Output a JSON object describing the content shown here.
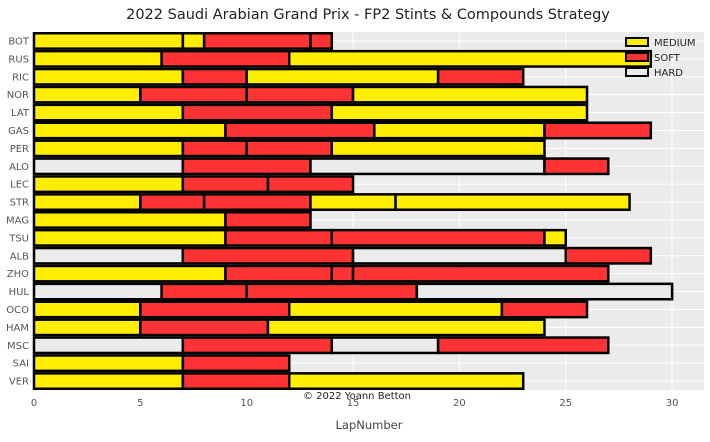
{
  "chart_data": {
    "type": "bar",
    "orientation": "horizontal-stacked",
    "title": "2022 Saudi Arabian Grand Prix - FP2 Stints & Compounds Strategy",
    "xlabel": "LapNumber",
    "ylabel": "",
    "xlim": [
      0,
      31.5
    ],
    "xticks": [
      0,
      5,
      10,
      15,
      20,
      25,
      30
    ],
    "grid": true,
    "legend_position": "top-right",
    "credit": "© 2022 Yoann Betton",
    "compounds": [
      {
        "name": "MEDIUM",
        "color": "#ffee00"
      },
      {
        "name": "SOFT",
        "color": "#ff3333"
      },
      {
        "name": "HARD",
        "color": "#ebebeb"
      }
    ],
    "drivers": [
      {
        "driver": "VER",
        "stints": [
          {
            "start": 0,
            "end": 7,
            "compound": "MEDIUM"
          },
          {
            "start": 7,
            "end": 12,
            "compound": "SOFT"
          },
          {
            "start": 12,
            "end": 23,
            "compound": "MEDIUM"
          }
        ]
      },
      {
        "driver": "SAI",
        "stints": [
          {
            "start": 0,
            "end": 7,
            "compound": "MEDIUM"
          },
          {
            "start": 7,
            "end": 12,
            "compound": "SOFT"
          }
        ]
      },
      {
        "driver": "MSC",
        "stints": [
          {
            "start": 0,
            "end": 7,
            "compound": "HARD"
          },
          {
            "start": 7,
            "end": 14,
            "compound": "SOFT"
          },
          {
            "start": 14,
            "end": 19,
            "compound": "HARD"
          },
          {
            "start": 19,
            "end": 27,
            "compound": "SOFT"
          }
        ]
      },
      {
        "driver": "HAM",
        "stints": [
          {
            "start": 0,
            "end": 5,
            "compound": "MEDIUM"
          },
          {
            "start": 5,
            "end": 11,
            "compound": "SOFT"
          },
          {
            "start": 11,
            "end": 24,
            "compound": "MEDIUM"
          }
        ]
      },
      {
        "driver": "OCO",
        "stints": [
          {
            "start": 0,
            "end": 5,
            "compound": "MEDIUM"
          },
          {
            "start": 5,
            "end": 12,
            "compound": "SOFT"
          },
          {
            "start": 12,
            "end": 22,
            "compound": "MEDIUM"
          },
          {
            "start": 22,
            "end": 26,
            "compound": "SOFT"
          }
        ]
      },
      {
        "driver": "HUL",
        "stints": [
          {
            "start": 0,
            "end": 6,
            "compound": "HARD"
          },
          {
            "start": 6,
            "end": 10,
            "compound": "SOFT"
          },
          {
            "start": 10,
            "end": 18,
            "compound": "SOFT"
          },
          {
            "start": 18,
            "end": 30,
            "compound": "HARD"
          }
        ]
      },
      {
        "driver": "ZHO",
        "stints": [
          {
            "start": 0,
            "end": 9,
            "compound": "MEDIUM"
          },
          {
            "start": 9,
            "end": 14,
            "compound": "SOFT"
          },
          {
            "start": 14,
            "end": 15,
            "compound": "SOFT"
          },
          {
            "start": 15,
            "end": 27,
            "compound": "SOFT"
          }
        ]
      },
      {
        "driver": "ALB",
        "stints": [
          {
            "start": 0,
            "end": 7,
            "compound": "HARD"
          },
          {
            "start": 7,
            "end": 15,
            "compound": "SOFT"
          },
          {
            "start": 15,
            "end": 25,
            "compound": "HARD"
          },
          {
            "start": 25,
            "end": 29,
            "compound": "SOFT"
          }
        ]
      },
      {
        "driver": "TSU",
        "stints": [
          {
            "start": 0,
            "end": 9,
            "compound": "MEDIUM"
          },
          {
            "start": 9,
            "end": 14,
            "compound": "SOFT"
          },
          {
            "start": 14,
            "end": 24,
            "compound": "SOFT"
          },
          {
            "start": 24,
            "end": 25,
            "compound": "MEDIUM"
          }
        ]
      },
      {
        "driver": "MAG",
        "stints": [
          {
            "start": 0,
            "end": 9,
            "compound": "MEDIUM"
          },
          {
            "start": 9,
            "end": 13,
            "compound": "SOFT"
          }
        ]
      },
      {
        "driver": "STR",
        "stints": [
          {
            "start": 0,
            "end": 5,
            "compound": "MEDIUM"
          },
          {
            "start": 5,
            "end": 8,
            "compound": "SOFT"
          },
          {
            "start": 8,
            "end": 13,
            "compound": "SOFT"
          },
          {
            "start": 13,
            "end": 17,
            "compound": "MEDIUM"
          },
          {
            "start": 17,
            "end": 28,
            "compound": "MEDIUM"
          }
        ]
      },
      {
        "driver": "LEC",
        "stints": [
          {
            "start": 0,
            "end": 7,
            "compound": "MEDIUM"
          },
          {
            "start": 7,
            "end": 11,
            "compound": "SOFT"
          },
          {
            "start": 11,
            "end": 15,
            "compound": "SOFT"
          }
        ]
      },
      {
        "driver": "ALO",
        "stints": [
          {
            "start": 0,
            "end": 7,
            "compound": "HARD"
          },
          {
            "start": 7,
            "end": 13,
            "compound": "SOFT"
          },
          {
            "start": 13,
            "end": 24,
            "compound": "HARD"
          },
          {
            "start": 24,
            "end": 27,
            "compound": "SOFT"
          }
        ]
      },
      {
        "driver": "PER",
        "stints": [
          {
            "start": 0,
            "end": 7,
            "compound": "MEDIUM"
          },
          {
            "start": 7,
            "end": 10,
            "compound": "SOFT"
          },
          {
            "start": 10,
            "end": 14,
            "compound": "SOFT"
          },
          {
            "start": 14,
            "end": 24,
            "compound": "MEDIUM"
          }
        ]
      },
      {
        "driver": "GAS",
        "stints": [
          {
            "start": 0,
            "end": 9,
            "compound": "MEDIUM"
          },
          {
            "start": 9,
            "end": 16,
            "compound": "SOFT"
          },
          {
            "start": 16,
            "end": 24,
            "compound": "MEDIUM"
          },
          {
            "start": 24,
            "end": 29,
            "compound": "SOFT"
          }
        ]
      },
      {
        "driver": "LAT",
        "stints": [
          {
            "start": 0,
            "end": 7,
            "compound": "MEDIUM"
          },
          {
            "start": 7,
            "end": 14,
            "compound": "SOFT"
          },
          {
            "start": 14,
            "end": 26,
            "compound": "MEDIUM"
          }
        ]
      },
      {
        "driver": "NOR",
        "stints": [
          {
            "start": 0,
            "end": 5,
            "compound": "MEDIUM"
          },
          {
            "start": 5,
            "end": 10,
            "compound": "SOFT"
          },
          {
            "start": 10,
            "end": 15,
            "compound": "SOFT"
          },
          {
            "start": 15,
            "end": 26,
            "compound": "MEDIUM"
          }
        ]
      },
      {
        "driver": "RIC",
        "stints": [
          {
            "start": 0,
            "end": 7,
            "compound": "MEDIUM"
          },
          {
            "start": 7,
            "end": 10,
            "compound": "SOFT"
          },
          {
            "start": 10,
            "end": 19,
            "compound": "MEDIUM"
          },
          {
            "start": 19,
            "end": 23,
            "compound": "SOFT"
          }
        ]
      },
      {
        "driver": "RUS",
        "stints": [
          {
            "start": 0,
            "end": 6,
            "compound": "MEDIUM"
          },
          {
            "start": 6,
            "end": 12,
            "compound": "SOFT"
          },
          {
            "start": 12,
            "end": 29,
            "compound": "MEDIUM"
          }
        ]
      },
      {
        "driver": "BOT",
        "stints": [
          {
            "start": 0,
            "end": 7,
            "compound": "MEDIUM"
          },
          {
            "start": 7,
            "end": 8,
            "compound": "MEDIUM"
          },
          {
            "start": 8,
            "end": 13,
            "compound": "SOFT"
          },
          {
            "start": 13,
            "end": 14,
            "compound": "SOFT"
          }
        ]
      }
    ]
  }
}
